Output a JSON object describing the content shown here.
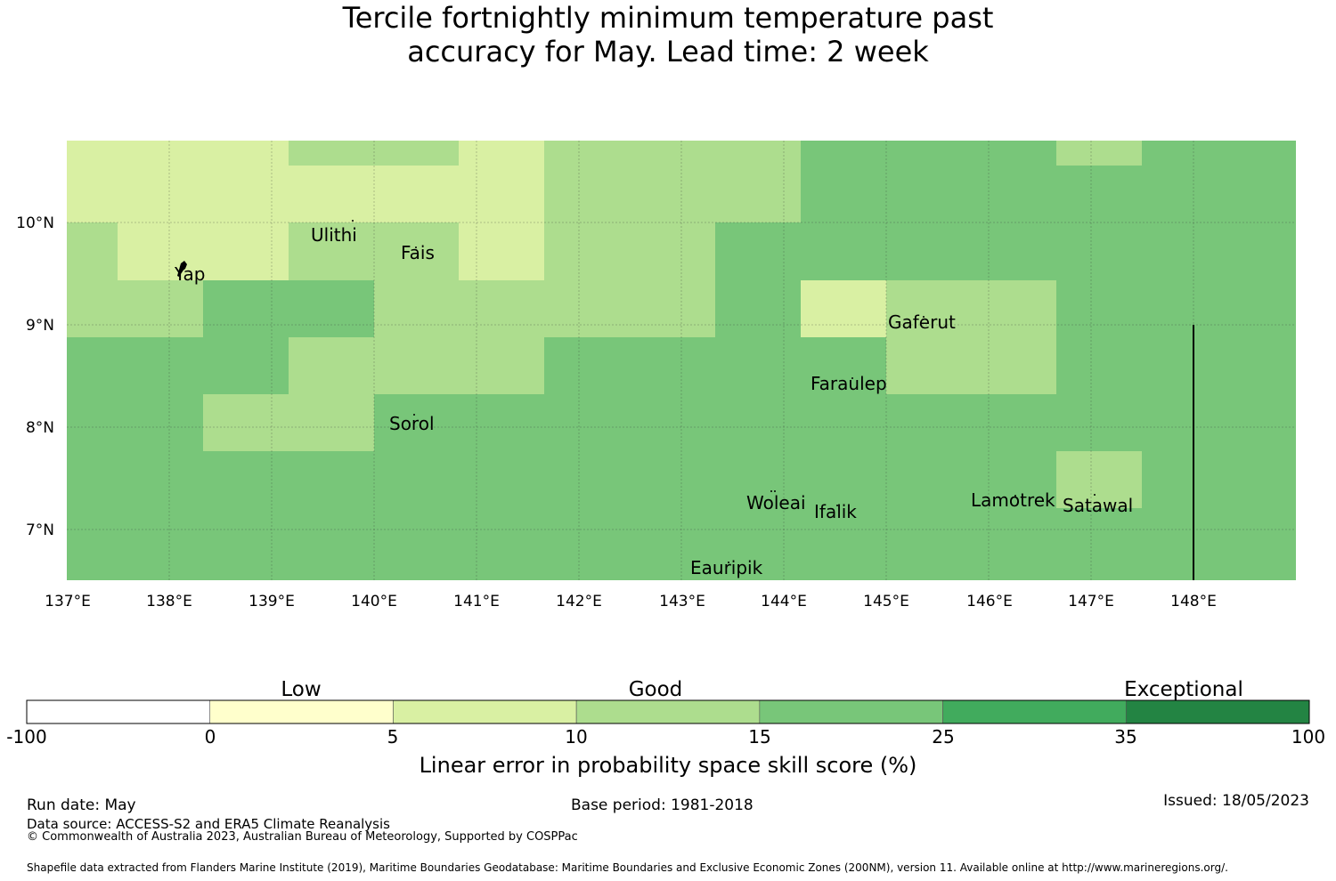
{
  "title_line1": "Tercile fortnightly minimum temperature past",
  "title_line2": "accuracy for May. Lead time: 2 week",
  "map": {
    "lon_labels": [
      "137°E",
      "138°E",
      "139°E",
      "140°E",
      "141°E",
      "142°E",
      "143°E",
      "144°E",
      "145°E",
      "146°E",
      "147°E",
      "148°E"
    ],
    "lat_labels": [
      "10°N",
      "9°N",
      "8°N",
      "7°N"
    ],
    "islands": [
      {
        "name": "Ulithi",
        "lon": 139.7,
        "lat": 9.95
      },
      {
        "name": "Fais",
        "lon": 140.5,
        "lat": 9.76
      },
      {
        "name": "Yap",
        "lon": 138.1,
        "lat": 9.5
      },
      {
        "name": "Gaferut",
        "lon": 145.4,
        "lat": 9.23
      },
      {
        "name": "Faraulep",
        "lon": 144.5,
        "lat": 8.6
      },
      {
        "name": "Sorol",
        "lon": 140.4,
        "lat": 8.13
      },
      {
        "name": "Woleai",
        "lon": 143.9,
        "lat": 7.36
      },
      {
        "name": "Ifalik",
        "lon": 144.4,
        "lat": 7.25
      },
      {
        "name": "Lamotrek",
        "lon": 146.3,
        "lat": 7.46
      },
      {
        "name": "Satawal",
        "lon": 147.0,
        "lat": 7.35
      },
      {
        "name": "Eauripik",
        "lon": 143.0,
        "lat": 6.7
      }
    ]
  },
  "legend": {
    "category_labels": [
      "Low",
      "Good",
      "Exceptional"
    ],
    "tick_labels": [
      "-100",
      "0",
      "5",
      "10",
      "15",
      "25",
      "35",
      "100"
    ],
    "colors": [
      "#ffffff",
      "#ffffcc",
      "#d9f0a3",
      "#addd8e",
      "#78c679",
      "#41ab5d",
      "#238443"
    ],
    "axis_label": "Linear error in probability space skill score (%)"
  },
  "footer": {
    "run_date": "Run date: May",
    "base_period": "Base period: 1981-2018",
    "issued": "Issued: 18/05/2023",
    "data_source": "Data source: ACCESS-S2 and ERA5 Climate Reanalysis",
    "copyright": "© Commonwealth of Australia 2023, Australian Bureau of Meteorology, Supported by COSPPac",
    "shapefile": "Shapefile data extracted from Flanders Marine Institute (2019), Maritime Boundaries Geodatabase: Maritime Boundaries and Exclusive Economic Zones (200NM), version 11. Available online at http://www.marineregions.org/."
  }
}
